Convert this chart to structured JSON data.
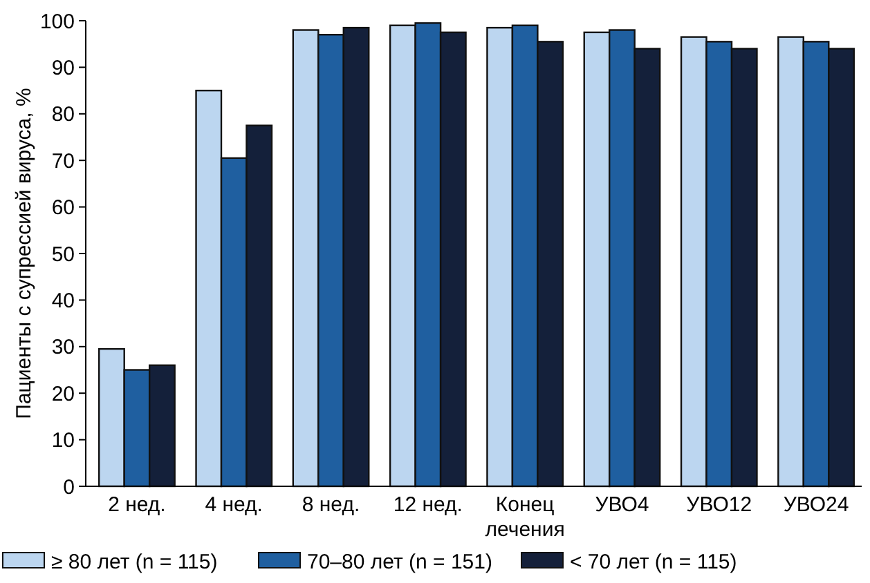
{
  "chart_data": {
    "type": "bar",
    "ylabel": "Пациенты с супрессией вируса, %",
    "categories": [
      "2 нед.",
      "4 нед.",
      "8 нед.",
      "12 нед.",
      "Конец лечения",
      "УВО4",
      "УВО12",
      "УВО24"
    ],
    "series": [
      {
        "name": "≥ 80 лет (n = 115)",
        "color": "#bcd6f0",
        "values": [
          29.5,
          85,
          98,
          99,
          98.5,
          97.5,
          96.5,
          96.5
        ]
      },
      {
        "name": "70–80 лет (n = 151)",
        "color": "#1f5fa0",
        "values": [
          25,
          70.5,
          97,
          99.5,
          99,
          98,
          95.5,
          95.5
        ]
      },
      {
        "name": "< 70 лет (n = 115)",
        "color": "#14203a",
        "values": [
          26,
          77.5,
          98.5,
          97.5,
          95.5,
          94,
          94,
          94
        ]
      }
    ],
    "ylim": [
      0,
      100
    ],
    "yticks": [
      0,
      10,
      20,
      30,
      40,
      50,
      60,
      70,
      80,
      90,
      100
    ],
    "grid": false,
    "legend": "bottom"
  }
}
